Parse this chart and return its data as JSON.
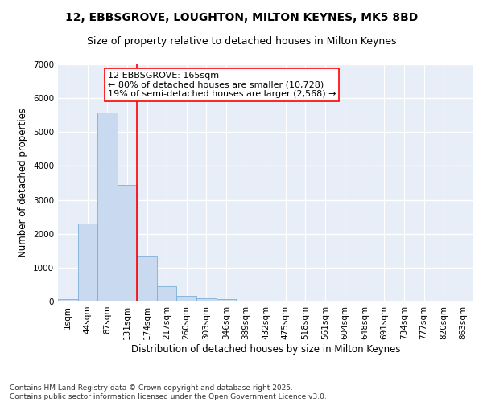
{
  "title1": "12, EBBSGROVE, LOUGHTON, MILTON KEYNES, MK5 8BD",
  "title2": "Size of property relative to detached houses in Milton Keynes",
  "xlabel": "Distribution of detached houses by size in Milton Keynes",
  "ylabel": "Number of detached properties",
  "categories": [
    "1sqm",
    "44sqm",
    "87sqm",
    "131sqm",
    "174sqm",
    "217sqm",
    "260sqm",
    "303sqm",
    "346sqm",
    "389sqm",
    "432sqm",
    "475sqm",
    "518sqm",
    "561sqm",
    "604sqm",
    "648sqm",
    "691sqm",
    "734sqm",
    "777sqm",
    "820sqm",
    "863sqm"
  ],
  "values": [
    75,
    2300,
    5570,
    3430,
    1330,
    460,
    175,
    85,
    60,
    0,
    0,
    0,
    0,
    0,
    0,
    0,
    0,
    0,
    0,
    0,
    0
  ],
  "bar_color": "#c9d9f0",
  "bar_edge_color": "#7dafd8",
  "vline_x": 3.5,
  "vline_color": "red",
  "annotation_text": "12 EBBSGROVE: 165sqm\n← 80% of detached houses are smaller (10,728)\n19% of semi-detached houses are larger (2,568) →",
  "annotation_box_color": "white",
  "annotation_box_edge_color": "red",
  "ylim": [
    0,
    7000
  ],
  "yticks": [
    0,
    1000,
    2000,
    3000,
    4000,
    5000,
    6000,
    7000
  ],
  "background_color": "#e8eef8",
  "grid_color": "white",
  "footer1": "Contains HM Land Registry data © Crown copyright and database right 2025.",
  "footer2": "Contains public sector information licensed under the Open Government Licence v3.0.",
  "title_fontsize": 10,
  "subtitle_fontsize": 9,
  "axis_label_fontsize": 8.5,
  "tick_fontsize": 7.5,
  "annotation_fontsize": 8,
  "footer_fontsize": 6.5
}
